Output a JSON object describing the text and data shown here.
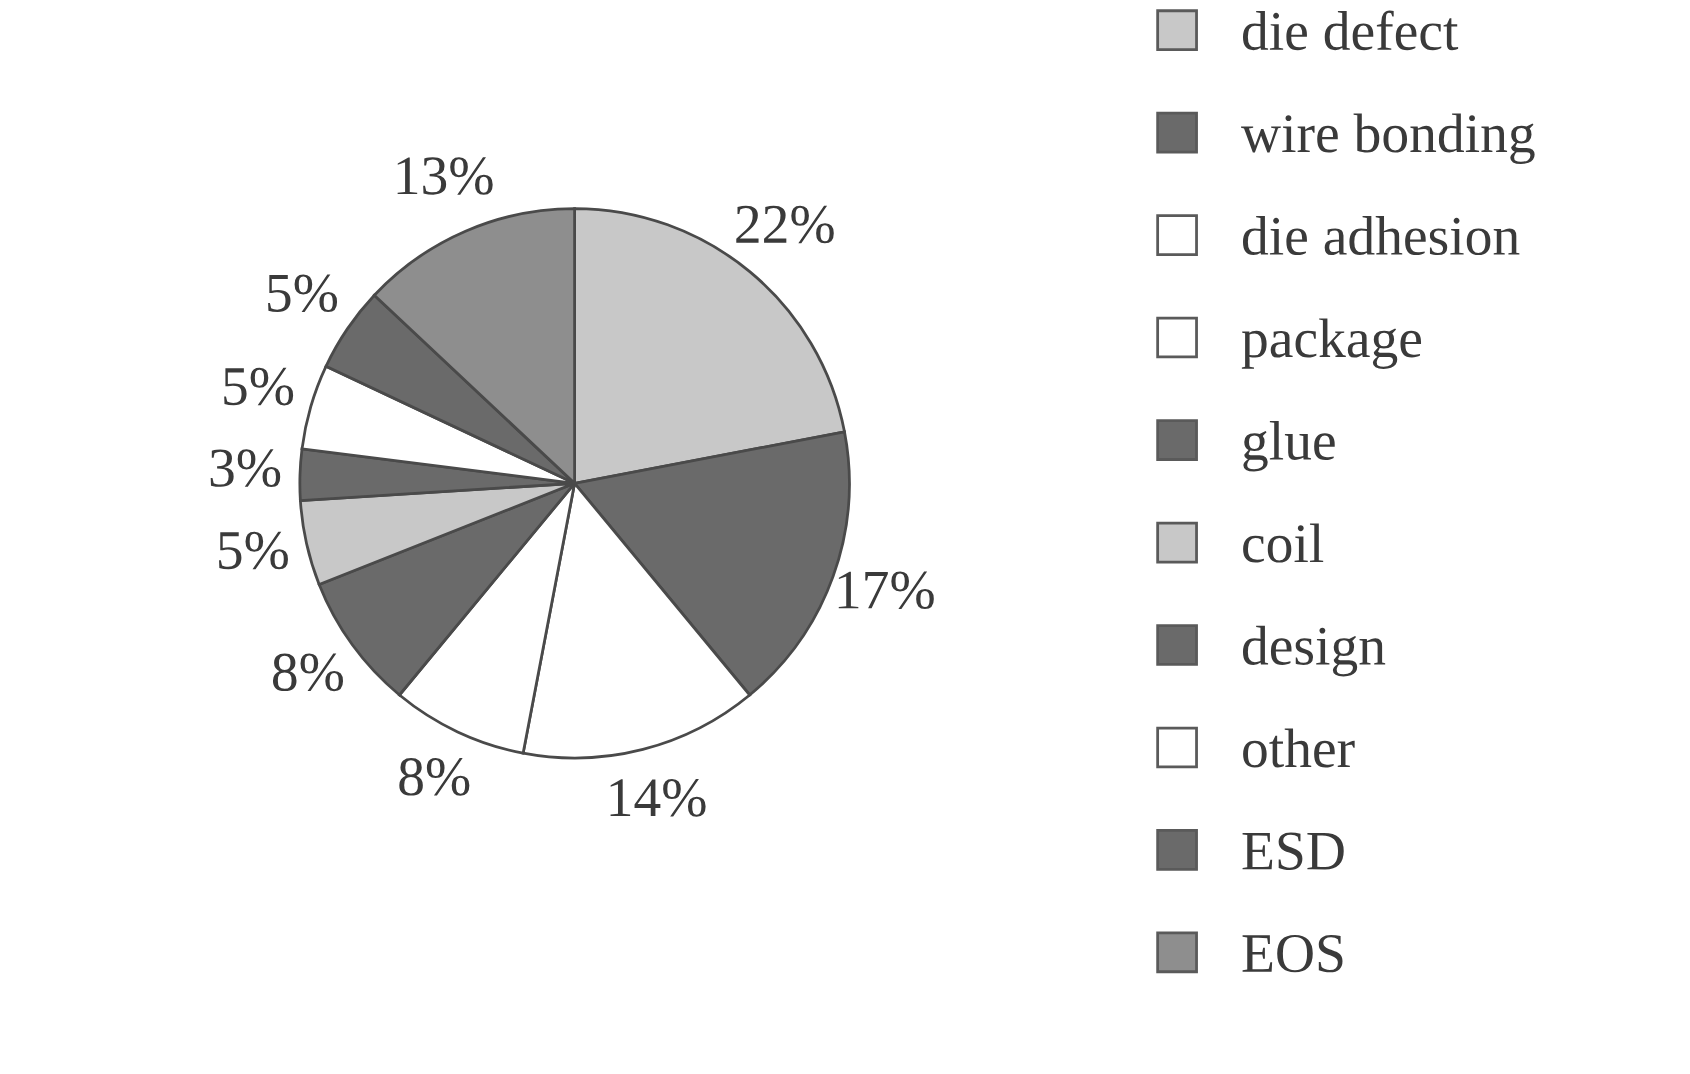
{
  "chart_data": {
    "type": "pie",
    "categories": [
      "die defect",
      "wire bonding",
      "die adhesion",
      "package",
      "glue",
      "coil",
      "design",
      "other",
      "ESD",
      "EOS"
    ],
    "values": [
      22,
      17,
      14,
      8,
      8,
      5,
      3,
      5,
      5,
      13
    ],
    "colors": [
      "#c8c8c8",
      "#6a6a6a",
      "#ffffff",
      "#ffffff",
      "#6a6a6a",
      "#c8c8c8",
      "#6a6a6a",
      "#ffffff",
      "#6a6a6a",
      "#8e8e8e"
    ],
    "value_labels": [
      "22%",
      "17%",
      "14%",
      "8%",
      "8%",
      "5%",
      "3%",
      "5%",
      "5%",
      "13%"
    ],
    "legend": "right"
  }
}
